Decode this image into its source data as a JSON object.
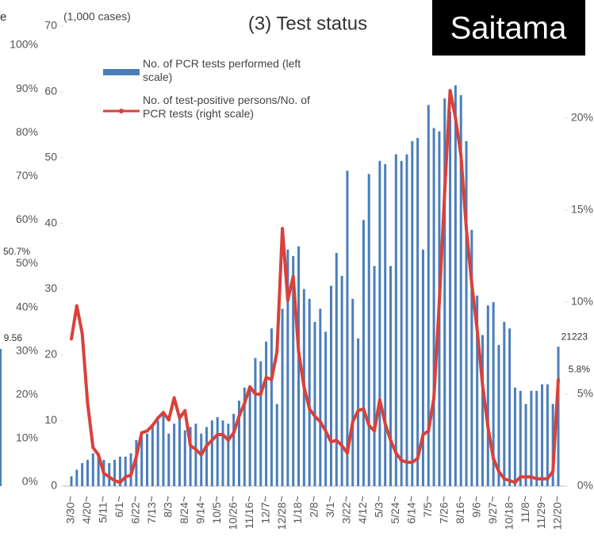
{
  "chart_data": {
    "type": "bar_line",
    "title": "(3) Test status",
    "y_unit": "(1,000 cases)",
    "categories": [
      "3/30~",
      null,
      null,
      "4/20~",
      null,
      null,
      "5/11~",
      null,
      null,
      "6/1~",
      null,
      null,
      "6/22~",
      null,
      null,
      "7/13~",
      null,
      null,
      "8/3~",
      null,
      null,
      "8/24~",
      null,
      null,
      "9/14~",
      null,
      null,
      "10/5~",
      null,
      null,
      "10/26~",
      null,
      null,
      "11/16~",
      null,
      null,
      "12/7~",
      null,
      null,
      "12/28~",
      null,
      null,
      "1/18~",
      null,
      null,
      "2/8~",
      null,
      null,
      "3/1~",
      null,
      null,
      "3/22~",
      null,
      null,
      "4/12~",
      null,
      null,
      "5/3~",
      null,
      null,
      "5/24~",
      null,
      null,
      "6/14~",
      null,
      null,
      "7/5~",
      null,
      null,
      "7/26~",
      null,
      null,
      "8/16~",
      null,
      null,
      "9/6~",
      null,
      null,
      "9/27~",
      null,
      null,
      "10/18~",
      null,
      null,
      "11/8~",
      null,
      null,
      "11/29~",
      null,
      null,
      "12/20~"
    ],
    "series": [
      {
        "name": "No. of PCR tests performed (left scale)",
        "color": "#4a7ebb",
        "kind": "bar",
        "axis": "y",
        "values": [
          1.5,
          2.5,
          3.5,
          4,
          5,
          4.5,
          4,
          3.5,
          4,
          4.5,
          4.5,
          5,
          7,
          7.5,
          8,
          9,
          10,
          11,
          8,
          9.5,
          11,
          8.5,
          9,
          9.5,
          8,
          9,
          10,
          10.5,
          10,
          9.5,
          11,
          13,
          15,
          15,
          19.5,
          19,
          22,
          24,
          12.5,
          27,
          36,
          35,
          36.5,
          30,
          28.5,
          25,
          27,
          23.5,
          30.5,
          35.5,
          32,
          48,
          28.5,
          22.5,
          40.5,
          47.5,
          33.5,
          49.5,
          49,
          33.5,
          50.5,
          49.5,
          50.5,
          52.5,
          53,
          36,
          58,
          54.5,
          54,
          59,
          57,
          61,
          59.5,
          52.5,
          39,
          29,
          23,
          27.5,
          28,
          21.5,
          25,
          24,
          15,
          14.5,
          12.5,
          14.5,
          14.5,
          15.5,
          15.5,
          12.5,
          21.223
        ],
        "value_labels": [
          null,
          null,
          null,
          null,
          null,
          null,
          null,
          null,
          null,
          null,
          null,
          null,
          null,
          null,
          null,
          null,
          null,
          null,
          null,
          null,
          null,
          null,
          null,
          null,
          null,
          null,
          null,
          null,
          null,
          null,
          null,
          null,
          null,
          null,
          null,
          null,
          null,
          null,
          null,
          null,
          null,
          null,
          null,
          null,
          null,
          null,
          null,
          null,
          null,
          null,
          null,
          null,
          null,
          null,
          null,
          null,
          null,
          null,
          null,
          null,
          null,
          null,
          null,
          null,
          null,
          null,
          null,
          null,
          null,
          null,
          null,
          null,
          null,
          null,
          null,
          null,
          null,
          null,
          null,
          null,
          null,
          null,
          null,
          null,
          null,
          null,
          null,
          null,
          null,
          null,
          "21223"
        ]
      },
      {
        "name": "No. of test-positive persons/No. of PCR tests (right scale)",
        "color": "#d9413a",
        "kind": "line",
        "axis": "y2",
        "values": [
          8.0,
          9.8,
          8.3,
          4.5,
          2.1,
          1.7,
          0.7,
          0.5,
          0.3,
          0.2,
          0.5,
          0.6,
          1.6,
          2.9,
          3.0,
          3.3,
          3.7,
          4.0,
          3.6,
          4.8,
          3.7,
          4.1,
          2.2,
          2.0,
          1.7,
          2.2,
          2.5,
          2.8,
          2.8,
          2.5,
          2.9,
          3.8,
          4.5,
          5.4,
          5.0,
          5.0,
          5.9,
          5.8,
          7.3,
          14.0,
          10.1,
          11.4,
          7.3,
          5.4,
          4.2,
          3.8,
          3.5,
          3.0,
          2.4,
          2.5,
          2.2,
          1.8,
          3.5,
          4.1,
          4.2,
          3.3,
          3.0,
          4.7,
          3.4,
          2.5,
          1.8,
          1.4,
          1.3,
          1.3,
          1.5,
          2.8,
          3.0,
          4.8,
          10,
          16,
          21.5,
          20,
          18,
          14,
          11,
          8.5,
          5.5,
          3.2,
          1.5,
          0.8,
          0.4,
          0.3,
          0.2,
          0.5,
          0.5,
          0.5,
          0.4,
          0.4,
          0.4,
          0.8,
          5.8
        ],
        "value_labels": [
          null,
          null,
          null,
          null,
          null,
          null,
          null,
          null,
          null,
          null,
          null,
          null,
          null,
          null,
          null,
          null,
          null,
          null,
          null,
          null,
          null,
          null,
          null,
          null,
          null,
          null,
          null,
          null,
          null,
          null,
          null,
          null,
          null,
          null,
          null,
          null,
          null,
          null,
          null,
          null,
          null,
          null,
          null,
          null,
          null,
          null,
          null,
          null,
          null,
          null,
          null,
          null,
          null,
          null,
          null,
          null,
          null,
          null,
          null,
          null,
          null,
          null,
          null,
          null,
          null,
          null,
          null,
          null,
          null,
          null,
          null,
          null,
          null,
          null,
          null,
          null,
          null,
          null,
          null,
          null,
          null,
          null,
          null,
          null,
          null,
          null,
          null,
          null,
          null,
          null,
          "5.8%"
        ]
      }
    ],
    "ylim": [
      0,
      70
    ],
    "yticks": [
      0,
      10,
      20,
      30,
      40,
      50,
      60,
      70
    ],
    "y2lim": [
      0,
      25
    ],
    "y2ticks": [
      {
        "value": 0,
        "label": "0%"
      },
      {
        "value": 5,
        "label": "5%"
      },
      {
        "value": 10,
        "label": "10%"
      },
      {
        "value": 15,
        "label": "15%"
      },
      {
        "value": 20,
        "label": "20%"
      }
    ]
  },
  "badge": "Saitama",
  "left_panel": {
    "cut_text": "e",
    "ticks": [
      "100%",
      "90%",
      "80%",
      "70%",
      "60%",
      "50%",
      "40%",
      "30%",
      "20%",
      "10%",
      "0%"
    ],
    "labels": [
      "50.7%",
      "9.56"
    ]
  }
}
